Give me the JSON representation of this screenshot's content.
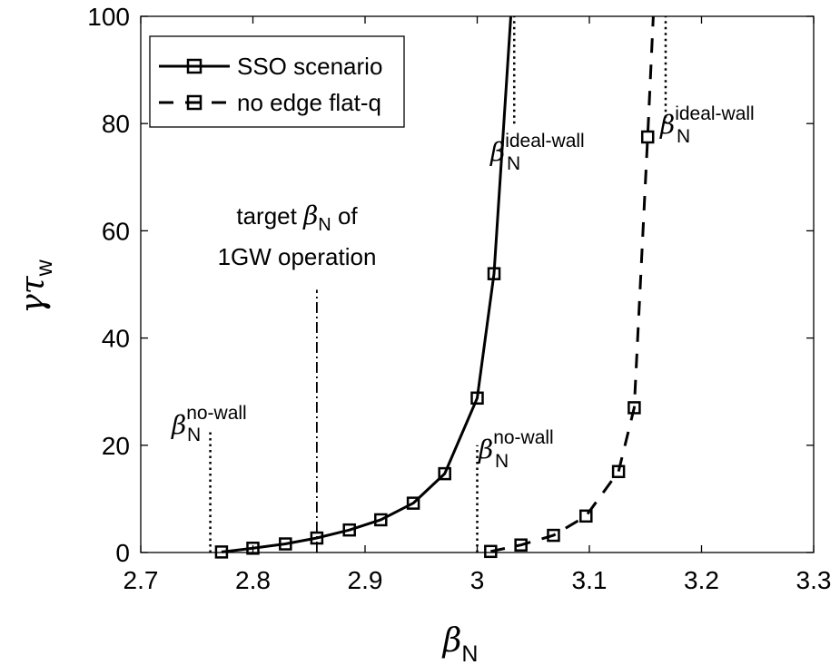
{
  "chart_data": {
    "type": "line",
    "xlabel": {
      "symbol": "β",
      "sub": "N"
    },
    "ylabel": {
      "symbol": "γτ",
      "sub": "w"
    },
    "xlim": [
      2.7,
      3.3
    ],
    "ylim": [
      0,
      100
    ],
    "xticks": [
      2.7,
      2.8,
      2.9,
      3.0,
      3.1,
      3.2,
      3.3
    ],
    "xtick_labels": [
      "2.7",
      "2.8",
      "2.9",
      "3",
      "3.1",
      "3.2",
      "3.3"
    ],
    "yticks": [
      0,
      20,
      40,
      60,
      80,
      100
    ],
    "ytick_labels": [
      "0",
      "20",
      "40",
      "60",
      "80",
      "100"
    ],
    "grid": false,
    "legend_position": "top-left",
    "series": [
      {
        "name": "SSO scenario",
        "line": "solid",
        "marker": "square",
        "x": [
          2.772,
          2.8,
          2.829,
          2.857,
          2.886,
          2.914,
          2.943,
          2.971,
          3.0,
          3.015,
          3.03
        ],
        "y": [
          0.1,
          0.8,
          1.6,
          2.7,
          4.2,
          6.1,
          9.2,
          14.7,
          28.8,
          52.0,
          100
        ],
        "marker_count": 10
      },
      {
        "name": "no edge flat-q",
        "line": "dashed",
        "marker": "square",
        "x": [
          3.012,
          3.039,
          3.068,
          3.097,
          3.126,
          3.14,
          3.152,
          3.157
        ],
        "y": [
          0.2,
          1.4,
          3.2,
          6.8,
          15.1,
          27.0,
          77.5,
          100
        ],
        "marker_count": 7
      }
    ],
    "vlines": [
      {
        "x": 2.762,
        "y_top": 23,
        "style": "dotted"
      },
      {
        "x": 2.857,
        "y_top": 49,
        "style": "dashdot"
      },
      {
        "x": 3.0,
        "y_top": 20,
        "style": "dotted"
      },
      {
        "x": 3.033,
        "y_top": 100,
        "y_bottom": 80,
        "style": "dotted"
      },
      {
        "x": 3.168,
        "y_top": 100,
        "y_bottom": 80,
        "style": "dotted"
      }
    ],
    "annotations": [
      {
        "id": "nowall1",
        "symbol": "β",
        "sub": "N",
        "sup": "no-wall"
      },
      {
        "id": "nowall2",
        "symbol": "β",
        "sub": "N",
        "sup": "no-wall"
      },
      {
        "id": "ideal1",
        "symbol": "β",
        "sub": "N",
        "sup": "ideal-wall"
      },
      {
        "id": "ideal2",
        "symbol": "β",
        "sub": "N",
        "sup": "ideal-wall"
      },
      {
        "id": "target",
        "line1_pre": "target ",
        "symbol": "β",
        "sub": "N",
        "line1_post": " of",
        "line2": "1GW operation"
      }
    ]
  }
}
